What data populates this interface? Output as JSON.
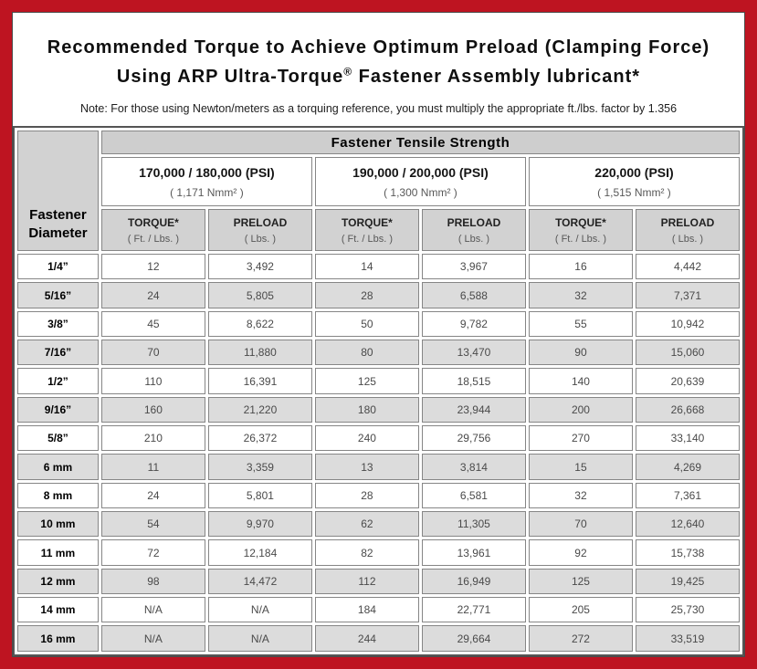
{
  "page": {
    "frame_color": "#be1421",
    "header_gray": "#d2d2d2",
    "stripe_gray": "#dcdcdc"
  },
  "title": {
    "line1": "Recommended Torque to Achieve Optimum Preload (Clamping Force)",
    "line2_before": "Using ARP Ultra-Torque",
    "line2_sup": "®",
    "line2_after": " Fastener Assembly lubricant*",
    "note": "Note: For those using Newton/meters as a torquing reference, you must multiply the appropriate ft./lbs. factor by 1.356"
  },
  "table": {
    "tensile_header": "Fastener Tensile Strength",
    "corner": {
      "line1": "Fastener",
      "line2": "Diameter"
    },
    "groups": [
      {
        "psi": "170,000 / 180,000 (PSI)",
        "nmm": "( 1,171 Nmm² )"
      },
      {
        "psi": "190,000 / 200,000 (PSI)",
        "nmm": "( 1,300 Nmm² )"
      },
      {
        "psi": "220,000 (PSI)",
        "nmm": "( 1,515 Nmm² )"
      }
    ],
    "columns": {
      "torque_label": "TORQUE*",
      "torque_unit": "( Ft. / Lbs. )",
      "preload_label": "PRELOAD",
      "preload_unit": "( Lbs. )"
    },
    "rows": [
      {
        "diameter": "1/4”",
        "values": [
          "12",
          "3,492",
          "14",
          "3,967",
          "16",
          "4,442"
        ]
      },
      {
        "diameter": "5/16”",
        "values": [
          "24",
          "5,805",
          "28",
          "6,588",
          "32",
          "7,371"
        ]
      },
      {
        "diameter": "3/8”",
        "values": [
          "45",
          "8,622",
          "50",
          "9,782",
          "55",
          "10,942"
        ]
      },
      {
        "diameter": "7/16”",
        "values": [
          "70",
          "11,880",
          "80",
          "13,470",
          "90",
          "15,060"
        ]
      },
      {
        "diameter": "1/2”",
        "values": [
          "110",
          "16,391",
          "125",
          "18,515",
          "140",
          "20,639"
        ]
      },
      {
        "diameter": "9/16”",
        "values": [
          "160",
          "21,220",
          "180",
          "23,944",
          "200",
          "26,668"
        ]
      },
      {
        "diameter": "5/8”",
        "values": [
          "210",
          "26,372",
          "240",
          "29,756",
          "270",
          "33,140"
        ]
      },
      {
        "diameter": "6 mm",
        "values": [
          "11",
          "3,359",
          "13",
          "3,814",
          "15",
          "4,269"
        ]
      },
      {
        "diameter": "8 mm",
        "values": [
          "24",
          "5,801",
          "28",
          "6,581",
          "32",
          "7,361"
        ]
      },
      {
        "diameter": "10 mm",
        "values": [
          "54",
          "9,970",
          "62",
          "11,305",
          "70",
          "12,640"
        ]
      },
      {
        "diameter": "11 mm",
        "values": [
          "72",
          "12,184",
          "82",
          "13,961",
          "92",
          "15,738"
        ]
      },
      {
        "diameter": "12 mm",
        "values": [
          "98",
          "14,472",
          "112",
          "16,949",
          "125",
          "19,425"
        ]
      },
      {
        "diameter": "14 mm",
        "values": [
          "N/A",
          "N/A",
          "184",
          "22,771",
          "205",
          "25,730"
        ]
      },
      {
        "diameter": "16 mm",
        "values": [
          "N/A",
          "N/A",
          "244",
          "29,664",
          "272",
          "33,519"
        ]
      }
    ]
  }
}
